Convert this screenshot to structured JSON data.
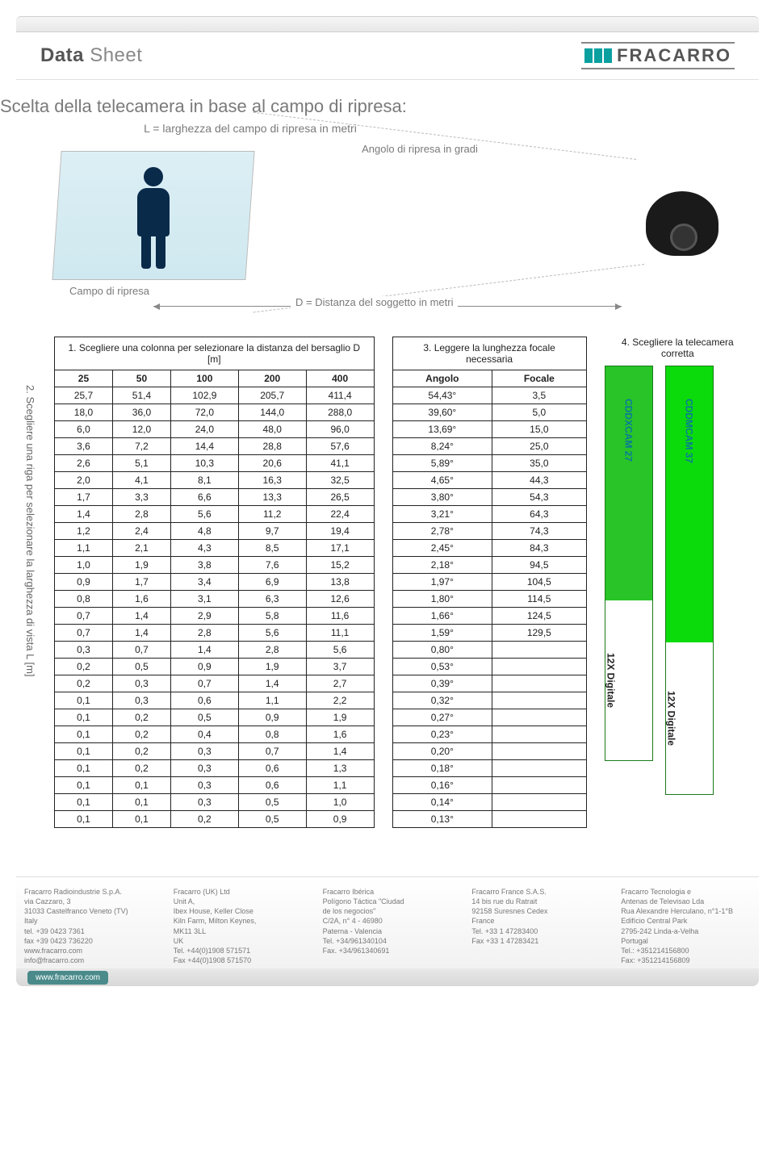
{
  "header": {
    "datasheet_bold": "Data",
    "datasheet_light": "Sheet",
    "brand": "FRACARRO"
  },
  "section_title": "Scelta della telecamera in base al campo di ripresa:",
  "diagram": {
    "label_L": "L = larghezza del campo di ripresa in metri",
    "label_angle": "Angolo di ripresa in gradi",
    "label_campo": "Campo di ripresa",
    "label_D": "D = Distanza del soggetto in metri"
  },
  "table1": {
    "caption": "1. Scegliere una colonna per selezionare la distanza del bersaglio D [m]",
    "side_caption": "2. Scegliere una riga per selezionare la larghezza di vista L [m]",
    "headers": [
      "25",
      "50",
      "100",
      "200",
      "400"
    ],
    "rows": [
      [
        "25,7",
        "51,4",
        "102,9",
        "205,7",
        "411,4"
      ],
      [
        "18,0",
        "36,0",
        "72,0",
        "144,0",
        "288,0"
      ],
      [
        "6,0",
        "12,0",
        "24,0",
        "48,0",
        "96,0"
      ],
      [
        "3,6",
        "7,2",
        "14,4",
        "28,8",
        "57,6"
      ],
      [
        "2,6",
        "5,1",
        "10,3",
        "20,6",
        "41,1"
      ],
      [
        "2,0",
        "4,1",
        "8,1",
        "16,3",
        "32,5"
      ],
      [
        "1,7",
        "3,3",
        "6,6",
        "13,3",
        "26,5"
      ],
      [
        "1,4",
        "2,8",
        "5,6",
        "11,2",
        "22,4"
      ],
      [
        "1,2",
        "2,4",
        "4,8",
        "9,7",
        "19,4"
      ],
      [
        "1,1",
        "2,1",
        "4,3",
        "8,5",
        "17,1"
      ],
      [
        "1,0",
        "1,9",
        "3,8",
        "7,6",
        "15,2"
      ],
      [
        "0,9",
        "1,7",
        "3,4",
        "6,9",
        "13,8"
      ],
      [
        "0,8",
        "1,6",
        "3,1",
        "6,3",
        "12,6"
      ],
      [
        "0,7",
        "1,4",
        "2,9",
        "5,8",
        "11,6"
      ],
      [
        "0,7",
        "1,4",
        "2,8",
        "5,6",
        "11,1"
      ],
      [
        "0,3",
        "0,7",
        "1,4",
        "2,8",
        "5,6"
      ],
      [
        "0,2",
        "0,5",
        "0,9",
        "1,9",
        "3,7"
      ],
      [
        "0,2",
        "0,3",
        "0,7",
        "1,4",
        "2,7"
      ],
      [
        "0,1",
        "0,3",
        "0,6",
        "1,1",
        "2,2"
      ],
      [
        "0,1",
        "0,2",
        "0,5",
        "0,9",
        "1,9"
      ],
      [
        "0,1",
        "0,2",
        "0,4",
        "0,8",
        "1,6"
      ],
      [
        "0,1",
        "0,2",
        "0,3",
        "0,7",
        "1,4"
      ],
      [
        "0,1",
        "0,2",
        "0,3",
        "0,6",
        "1,3"
      ],
      [
        "0,1",
        "0,1",
        "0,3",
        "0,6",
        "1,1"
      ],
      [
        "0,1",
        "0,1",
        "0,3",
        "0,5",
        "1,0"
      ],
      [
        "0,1",
        "0,1",
        "0,2",
        "0,5",
        "0,9"
      ]
    ]
  },
  "table2": {
    "caption": "3. Leggere la lunghezza focale necessaria",
    "headers": [
      "Angolo",
      "Focale"
    ],
    "rows": [
      [
        "54,43°",
        "3,5"
      ],
      [
        "39,60°",
        "5,0"
      ],
      [
        "13,69°",
        "15,0"
      ],
      [
        "8,24°",
        "25,0"
      ],
      [
        "5,89°",
        "35,0"
      ],
      [
        "4,65°",
        "44,3"
      ],
      [
        "3,80°",
        "54,3"
      ],
      [
        "3,21°",
        "64,3"
      ],
      [
        "2,78°",
        "74,3"
      ],
      [
        "2,45°",
        "84,3"
      ],
      [
        "2,18°",
        "94,5"
      ],
      [
        "1,97°",
        "104,5"
      ],
      [
        "1,80°",
        "114,5"
      ],
      [
        "1,66°",
        "124,5"
      ],
      [
        "1,59°",
        "129,5"
      ],
      [
        "0,80°",
        ""
      ],
      [
        "0,53°",
        ""
      ],
      [
        "0,39°",
        ""
      ],
      [
        "0,32°",
        ""
      ],
      [
        "0,27°",
        ""
      ],
      [
        "0,23°",
        ""
      ],
      [
        "0,20°",
        ""
      ],
      [
        "0,18°",
        ""
      ],
      [
        "0,16°",
        ""
      ],
      [
        "0,14°",
        ""
      ],
      [
        "0,13°",
        ""
      ]
    ]
  },
  "cameras": {
    "caption": "4. Scegliere la telecamera corretta",
    "model1": "CDDXCAM 27",
    "model2": "CDDMCAM 37",
    "digital": "12X Digitale",
    "colors": {
      "opt1": "#28c428",
      "opt2": "#0bdb0b",
      "border": "#1a7a1a"
    }
  },
  "footer": {
    "url": "www.fracarro.com",
    "cols": [
      [
        "Fracarro Radioindustrie S.p.A.",
        "via Cazzaro, 3",
        "31033 Castelfranco Veneto (TV)",
        "Italy",
        "tel. +39 0423 7361",
        "fax +39 0423 736220",
        "www.fracarro.com",
        "info@fracarro.com"
      ],
      [
        "Fracarro (UK) Ltd",
        "Unit A,",
        "Ibex House, Keller Close",
        "Kiln Farm, Milton Keynes,",
        "MK11 3LL",
        "UK",
        "Tel. +44(0)1908 571571",
        "Fax +44(0)1908 571570"
      ],
      [
        "Fracarro Ibérica",
        "Polígono Táctica \"Ciudad",
        "de los negocios\"",
        "C/2A, n° 4 - 46980",
        "Paterna - Valencia",
        "Tel. +34/961340104",
        "Fax. +34/961340691"
      ],
      [
        "Fracarro France S.A.S.",
        "14 bis rue du Ratrait",
        "92158 Suresnes Cedex",
        "France",
        "Tel. +33 1 47283400",
        "Fax +33 1 47283421"
      ],
      [
        "Fracarro Tecnologia e",
        "Antenas de Televisao Lda",
        "Rua Alexandre Herculano, n°1-1°B",
        "Edifício Central Park",
        "2795-242 Linda-a-Velha",
        "Portugal",
        "Tel.: +351214156800",
        "Fax: +351214156809"
      ]
    ]
  }
}
